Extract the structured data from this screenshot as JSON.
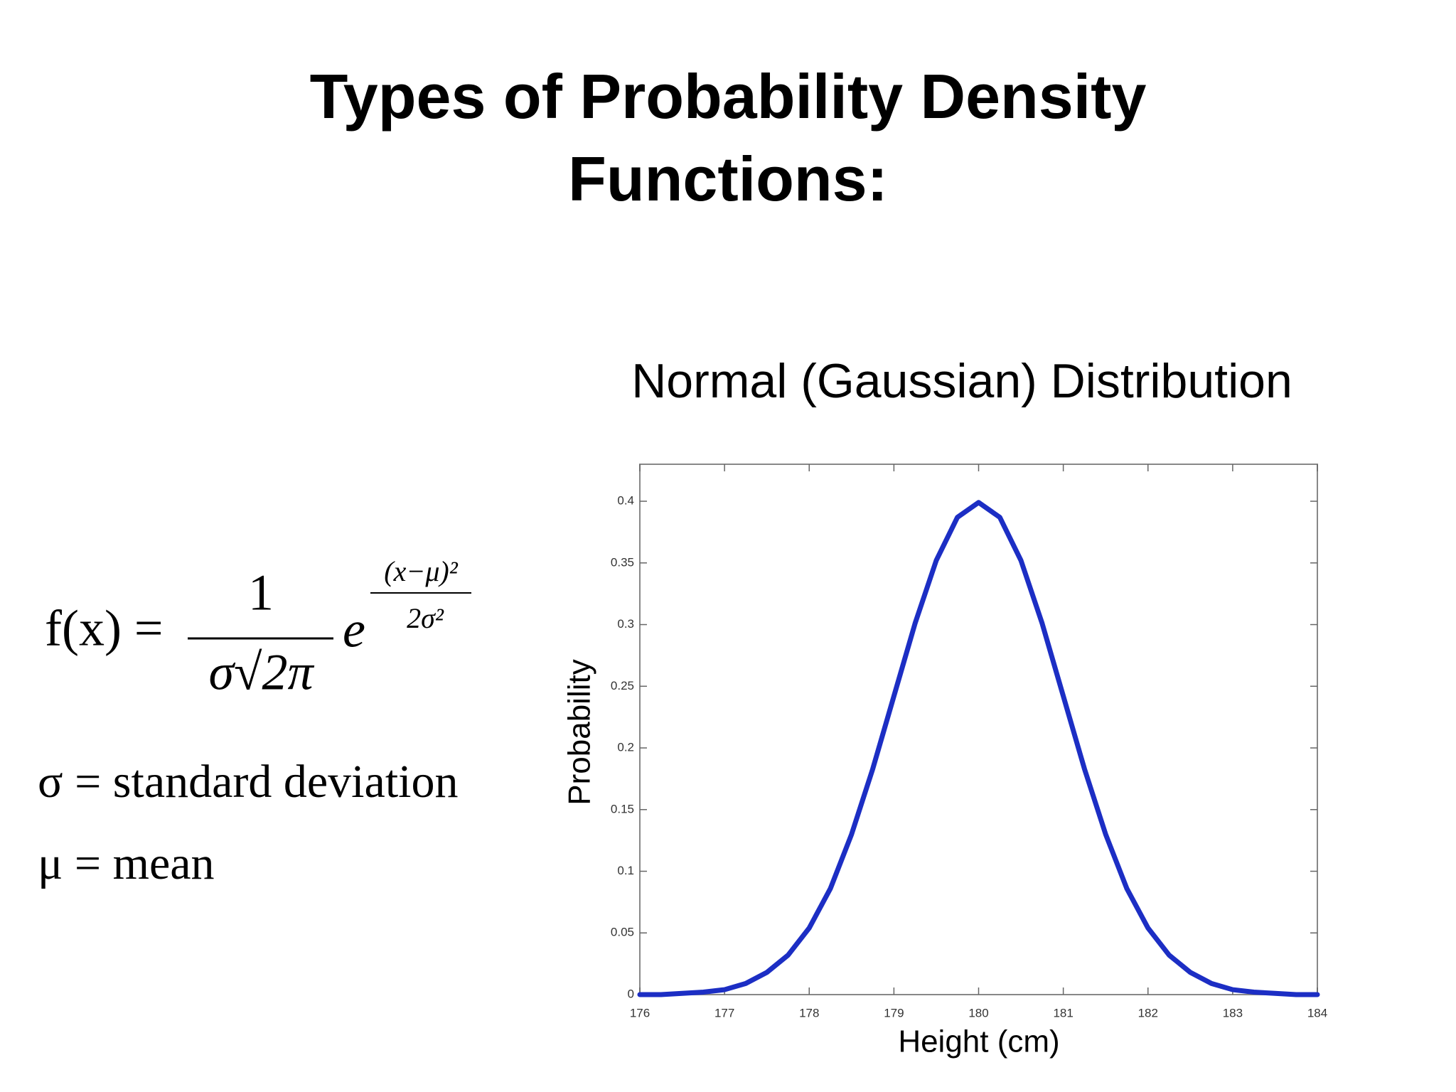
{
  "slide": {
    "title": "Types of Probability Density Functions:",
    "formula": {
      "lhs": "f(x) =",
      "numerator": "1",
      "denominator": "σ√2π",
      "base": "e",
      "exponent_numerator": "(x−μ)²",
      "exponent_denominator": "2σ²"
    },
    "definitions": [
      "σ = standard deviation",
      "μ = mean"
    ]
  },
  "chart_data": {
    "type": "line",
    "title": "Normal (Gaussian) Distribution",
    "x_label": "Height (cm)",
    "y_label": "Probability",
    "x": [
      176,
      176.25,
      176.5,
      176.75,
      177,
      177.25,
      177.5,
      177.75,
      178,
      178.25,
      178.5,
      178.75,
      179,
      179.25,
      179.5,
      179.75,
      180,
      180.25,
      180.5,
      180.75,
      181,
      181.25,
      181.5,
      181.75,
      182,
      182.25,
      182.5,
      182.75,
      183,
      183.25,
      183.5,
      183.75,
      184
    ],
    "values": [
      0.0,
      0.0,
      0.001,
      0.002,
      0.004,
      0.009,
      0.018,
      0.032,
      0.054,
      0.086,
      0.13,
      0.183,
      0.242,
      0.301,
      0.352,
      0.387,
      0.399,
      0.387,
      0.352,
      0.301,
      0.242,
      0.183,
      0.13,
      0.086,
      0.054,
      0.032,
      0.018,
      0.009,
      0.004,
      0.002,
      0.001,
      0.0,
      0.0
    ],
    "color": "#1c2ec4",
    "xlim": [
      176,
      184
    ],
    "xticks": [
      176,
      177,
      178,
      179,
      180,
      181,
      182,
      183,
      184
    ],
    "ylim": [
      0,
      0.43
    ],
    "yticks": [
      0,
      0.05,
      0.1,
      0.15,
      0.2,
      0.25,
      0.3,
      0.35,
      0.4
    ]
  }
}
